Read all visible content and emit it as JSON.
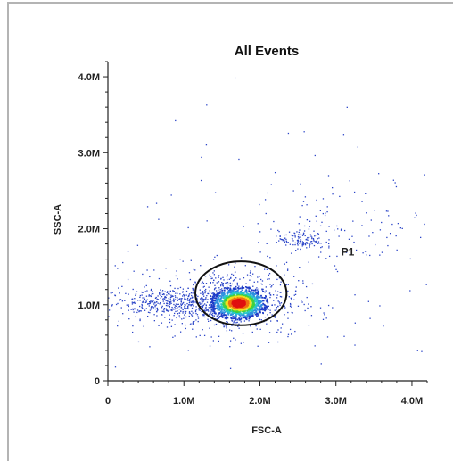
{
  "chart_data": {
    "type": "scatter",
    "title": "All Events",
    "xlabel": "FSC-A",
    "ylabel": "SSC-A",
    "xlim": [
      0,
      4.2
    ],
    "ylim": [
      0,
      4.2
    ],
    "x_unit": "M",
    "y_unit": "M",
    "x_ticks": [
      {
        "value": 0,
        "label": "0"
      },
      {
        "value": 1,
        "label": "1.0M"
      },
      {
        "value": 2,
        "label": "2.0M"
      },
      {
        "value": 3,
        "label": "3.0M"
      },
      {
        "value": 4,
        "label": "4.0M"
      }
    ],
    "y_ticks": [
      {
        "value": 0,
        "label": "0"
      },
      {
        "value": 1,
        "label": "1.0M"
      },
      {
        "value": 2,
        "label": "2.0M"
      },
      {
        "value": 3,
        "label": "3.0M"
      },
      {
        "value": 4,
        "label": "4.0M"
      }
    ],
    "grid": false,
    "legend": "none",
    "density_colors": [
      "#1e3cc8",
      "#2f8fe0",
      "#28c8c8",
      "#40d040",
      "#f0e020",
      "#f07010",
      "#e01010"
    ],
    "point_color": "#2a44c8",
    "gates": [
      {
        "name": "P1",
        "shape": "ellipse",
        "center": [
          1.75,
          1.15
        ],
        "radius_x": 0.6,
        "radius_y": 0.42,
        "stroke": "#111111"
      }
    ],
    "populations": [
      {
        "description": "main cluster",
        "center": [
          1.72,
          1.02
        ],
        "spread": [
          0.16,
          0.09
        ],
        "count": 1200
      },
      {
        "description": "main cluster halo",
        "center": [
          1.62,
          1.05
        ],
        "spread": [
          0.45,
          0.22
        ],
        "count": 700
      },
      {
        "description": "debris band",
        "center": [
          0.75,
          1.02
        ],
        "spread": [
          0.4,
          0.1
        ],
        "count": 400
      },
      {
        "description": "upper cluster",
        "center": [
          2.55,
          1.85
        ],
        "spread": [
          0.15,
          0.06
        ],
        "count": 120
      },
      {
        "description": "diagonal tail",
        "center": [
          3.2,
          2.05
        ],
        "spread": [
          0.55,
          0.3
        ],
        "count": 90
      },
      {
        "description": "sparse background",
        "center": [
          2.0,
          1.5
        ],
        "spread": [
          1.5,
          1.2
        ],
        "count": 150
      }
    ]
  }
}
